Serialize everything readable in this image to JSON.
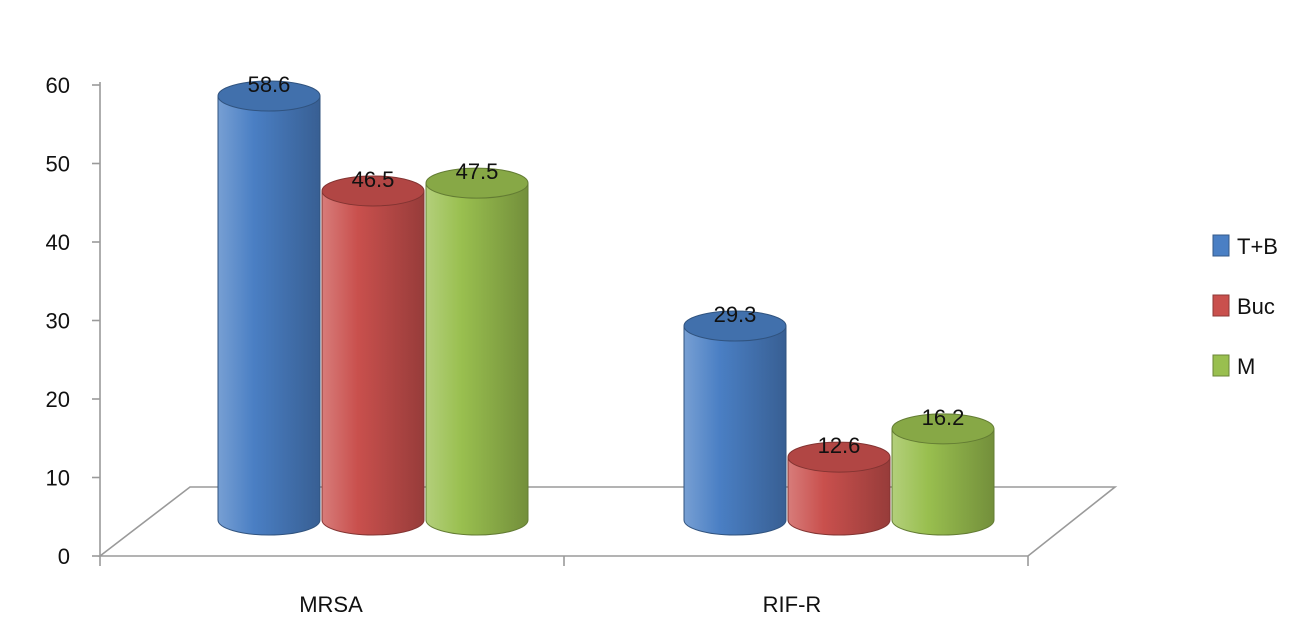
{
  "chart_data": {
    "type": "bar",
    "style": "3d-cylinder",
    "categories": [
      "MRSA",
      "RIF-R"
    ],
    "series": [
      {
        "name": "T+B",
        "values": [
          58.6,
          29.3
        ],
        "color": "#4a7fc4"
      },
      {
        "name": "Buc",
        "values": [
          46.5,
          12.6
        ],
        "color": "#c9504d"
      },
      {
        "name": "M",
        "values": [
          47.5,
          16.2
        ],
        "color": "#99bf4f"
      }
    ],
    "y_ticks": [
      "0",
      "10",
      "20",
      "30",
      "40",
      "50",
      "60"
    ],
    "ylim": [
      0,
      60
    ],
    "data_labels": [
      [
        "58.6",
        "29.3"
      ],
      [
        "46.5",
        "12.6"
      ],
      [
        "47.5",
        "16.2"
      ]
    ],
    "legend_position": "right",
    "grid": false
  }
}
